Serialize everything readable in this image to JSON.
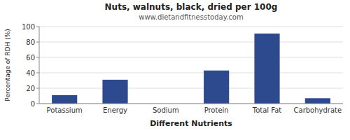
{
  "chart_data": {
    "type": "bar",
    "title": "Nuts, walnuts, black, dried per 100g",
    "subtitle": "www.dietandfitnesstoday.com",
    "xlabel": "Different Nutrients",
    "ylabel": "Percentage of RDH (%)",
    "categories": [
      "Potassium",
      "Energy",
      "Sodium",
      "Protein",
      "Total Fat",
      "Carbohydrate"
    ],
    "values": [
      11,
      31,
      0,
      43,
      91,
      7
    ],
    "color": "#2e4a8e",
    "ylim": [
      0,
      100
    ],
    "yticks": [
      0,
      20,
      40,
      60,
      80,
      100
    ],
    "grid": true
  }
}
